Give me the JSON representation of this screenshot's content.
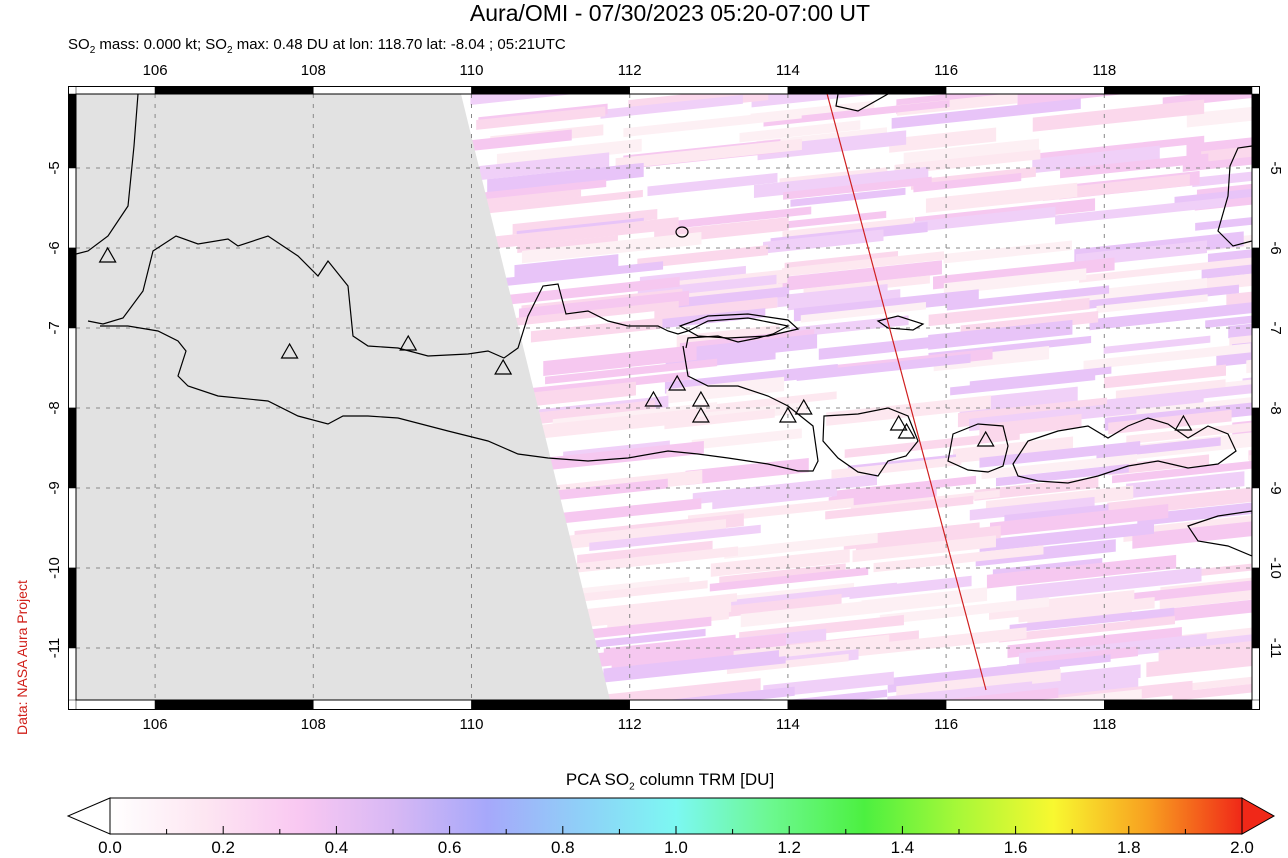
{
  "header": {
    "title": "Aura/OMI - 07/30/2023 05:20-07:00 UT",
    "subtitle_parts": [
      "SO",
      "2",
      " mass: 0.000 kt; SO",
      "2",
      " max: 0.48 DU at lon: 118.70 lat: -8.04 ; 05:21UTC"
    ]
  },
  "credit": "Data: NASA Aura Project",
  "colorbar": {
    "label_pre": "PCA SO",
    "label_sub": "2",
    "label_post": " column TRM [DU]",
    "ticks": [
      "0.0",
      "0.2",
      "0.4",
      "0.6",
      "0.8",
      "1.0",
      "1.2",
      "1.4",
      "1.6",
      "1.8",
      "2.0"
    ],
    "colors": [
      "#ffffff",
      "#fde6f2",
      "#f9c8f2",
      "#d8b8f4",
      "#a6a8fa",
      "#8fd0f8",
      "#7cf8f2",
      "#6cf890",
      "#4cf040",
      "#a8f838",
      "#f8f830",
      "#f8a020",
      "#f02818"
    ]
  },
  "chart_data": {
    "type": "heatmap",
    "title": "Aura/OMI - 07/30/2023 05:20-07:00 UT",
    "subtitle": "SO2 mass: 0.000 kt; SO2 max: 0.48 DU at lon: 118.70 lat: -8.04 ; 05:21UTC",
    "xlabel": "Longitude",
    "ylabel": "Latitude",
    "x_ticks": [
      106,
      108,
      110,
      112,
      114,
      116,
      118
    ],
    "y_ticks": [
      -5,
      -6,
      -7,
      -8,
      -9,
      -10,
      -11
    ],
    "xlim": [
      105,
      120
    ],
    "ylim": [
      -12,
      -4
    ],
    "grid": true,
    "colorbar_label": "PCA SO2 column TRM [DU]",
    "colorbar_range": [
      0.0,
      2.0
    ],
    "colorbar_ticks": [
      0.0,
      0.2,
      0.4,
      0.6,
      0.8,
      1.0,
      1.2,
      1.4,
      1.6,
      1.8,
      2.0
    ],
    "so2_mass_kt": 0.0,
    "so2_max_du": 0.48,
    "so2_max_lon": 118.7,
    "so2_max_lat": -8.04,
    "time_utc": "05:21UTC",
    "no_data_region": "grey area west of ~110.0 (top) to ~111.8 (bottom)",
    "orbit_track": {
      "color": "#d02020",
      "start": [
        114.5,
        -4.0
      ],
      "end": [
        116.5,
        -11.8
      ]
    },
    "volcanoes": [
      [
        105.4,
        -6.1
      ],
      [
        107.7,
        -7.3
      ],
      [
        109.2,
        -7.2
      ],
      [
        110.4,
        -7.5
      ],
      [
        112.3,
        -7.9
      ],
      [
        112.6,
        -7.7
      ],
      [
        112.9,
        -7.9
      ],
      [
        112.9,
        -8.1
      ],
      [
        114.0,
        -8.1
      ],
      [
        114.2,
        -8.0
      ],
      [
        115.4,
        -8.2
      ],
      [
        115.5,
        -8.3
      ],
      [
        116.5,
        -8.4
      ],
      [
        119.0,
        -8.2
      ]
    ],
    "values_observed": "mostly 0.0-0.48 DU (white to light pink/lavender pixels)"
  },
  "axes": {
    "lon_labels": [
      "106",
      "108",
      "110",
      "112",
      "114",
      "116",
      "118"
    ],
    "lat_labels": [
      "-5",
      "-6",
      "-7",
      "-8",
      "-9",
      "-10",
      "-11"
    ]
  }
}
